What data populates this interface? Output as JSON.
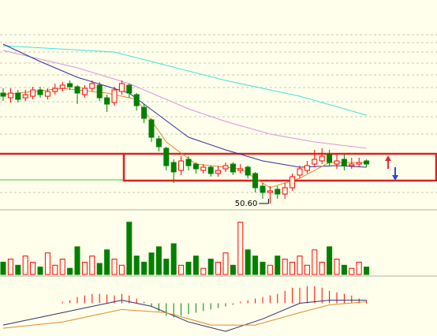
{
  "chart_data": [
    {
      "type": "candlestick",
      "open": [
        57.6,
        57.3,
        57.6,
        57.3,
        57.4,
        57.8,
        57.4,
        57.7,
        57.9,
        58.2,
        58.0,
        57.5,
        57.9,
        58.1,
        57.3,
        57.0,
        57.7,
        58.1,
        57.5,
        56.7,
        55.9,
        54.7,
        54.1,
        53.2,
        52.7,
        53.4,
        53.1,
        52.7,
        52.9,
        52.5,
        52.8,
        53.1,
        52.7,
        52.9,
        52.5,
        51.7,
        51.3,
        51.5,
        51.2,
        51.6,
        52.4,
        52.7,
        53.1,
        53.3,
        53.7,
        53.1,
        53.4,
        53.0,
        53.1,
        53.3
      ],
      "high": [
        57.9,
        57.9,
        57.8,
        57.8,
        58.0,
        58.0,
        57.9,
        58.2,
        58.3,
        58.4,
        58.1,
        58.1,
        58.4,
        58.3,
        57.5,
        58.0,
        58.4,
        58.2,
        57.6,
        56.9,
        56.0,
        54.9,
        54.2,
        53.4,
        53.6,
        53.6,
        53.2,
        53.1,
        53.0,
        53.0,
        53.2,
        53.2,
        53.1,
        53.0,
        52.6,
        51.9,
        51.7,
        51.7,
        51.9,
        52.5,
        53.0,
        53.3,
        54.0,
        54.1,
        54.0,
        53.8,
        53.7,
        53.5,
        53.5,
        53.4
      ],
      "low": [
        57.1,
        57.0,
        57.0,
        57.1,
        57.2,
        57.3,
        57.2,
        57.5,
        57.7,
        57.8,
        56.9,
        57.3,
        57.7,
        57.1,
        56.4,
        56.8,
        57.5,
        57.3,
        56.5,
        55.7,
        54.5,
        53.9,
        52.7,
        51.9,
        52.4,
        52.7,
        52.5,
        52.5,
        52.3,
        52.3,
        52.6,
        52.4,
        52.5,
        52.2,
        51.3,
        50.9,
        50.6,
        50.9,
        50.9,
        51.4,
        52.2,
        52.5,
        52.9,
        53.1,
        53.0,
        52.8,
        52.7,
        52.8,
        52.9,
        52.9
      ],
      "close": [
        57.4,
        57.6,
        57.2,
        57.5,
        57.8,
        57.5,
        57.7,
        57.9,
        58.1,
        58.0,
        57.6,
        57.9,
        58.2,
        57.3,
        56.9,
        57.8,
        58.2,
        57.6,
        56.8,
        56.0,
        54.8,
        54.2,
        53.0,
        52.6,
        53.3,
        53.0,
        52.8,
        52.9,
        52.5,
        52.7,
        53.0,
        52.6,
        52.8,
        52.4,
        51.6,
        51.3,
        51.4,
        51.2,
        51.6,
        52.3,
        52.8,
        53.0,
        53.4,
        53.6,
        53.2,
        53.3,
        53.0,
        53.1,
        53.2,
        53.1
      ],
      "up_color": "#ff0000",
      "down_color": "#008000",
      "low_label": {
        "value": 50.6,
        "label": "50.60"
      },
      "series": [
        {
          "color": "#40e0e0",
          "x": [
            0,
            15,
            30,
            40,
            49
          ],
          "values": [
            60.6,
            60.2,
            58.4,
            57.4,
            56.2
          ]
        },
        {
          "color": "#e090e0",
          "x": [
            0,
            10,
            17,
            25,
            30,
            36,
            42,
            49
          ],
          "values": [
            60.3,
            59.2,
            58.2,
            56.6,
            55.8,
            55.0,
            54.5,
            54.1
          ]
        },
        {
          "color": "#3030a0",
          "x": [
            0,
            5,
            10,
            17,
            21,
            25,
            30,
            35,
            40,
            45,
            49
          ],
          "values": [
            60.7,
            59.6,
            58.6,
            57.6,
            56.2,
            54.8,
            54.0,
            53.3,
            52.9,
            53.0,
            52.9
          ]
        },
        {
          "color": "#e08a2c",
          "x": [
            0,
            8,
            14,
            18,
            22,
            26,
            32,
            36,
            40,
            44,
            49
          ],
          "values": [
            57.5,
            57.9,
            57.6,
            57.2,
            54.5,
            53.1,
            52.8,
            51.6,
            52.2,
            53.2,
            53.2
          ]
        }
      ],
      "ylim": [
        50.2,
        63.5
      ]
    },
    {
      "type": "bar",
      "values": [
        20,
        25,
        15,
        30,
        20,
        12,
        35,
        15,
        25,
        10,
        45,
        20,
        30,
        18,
        40,
        25,
        15,
        85,
        30,
        20,
        35,
        45,
        25,
        50,
        15,
        20,
        30,
        10,
        25,
        20,
        35,
        15,
        85,
        40,
        30,
        20,
        15,
        30,
        25,
        20,
        30,
        15,
        40,
        20,
        45,
        25,
        15,
        10,
        20,
        12
      ],
      "ylim": [
        0,
        100
      ]
    },
    {
      "type": "macd",
      "values": [
        0,
        0,
        0,
        0,
        0,
        0,
        0,
        0,
        0.05,
        0.1,
        0.2,
        0.25,
        0.3,
        0.3,
        0.28,
        0.25,
        0.3,
        0.25,
        0.15,
        0.05,
        -0.1,
        -0.25,
        -0.4,
        -0.45,
        -0.4,
        -0.35,
        -0.3,
        -0.25,
        -0.2,
        -0.15,
        -0.1,
        -0.05,
        0.05,
        0.1,
        0.15,
        0.2,
        0.25,
        0.3,
        0.4,
        0.5,
        0.5,
        0.55,
        0.55,
        0.5,
        0.4,
        0.35,
        0.3,
        0.25,
        0.15,
        0.1
      ],
      "series": [
        {
          "color": "#303070",
          "x": [
            0,
            8,
            16,
            20,
            25,
            30,
            35,
            40,
            44,
            49
          ],
          "values": [
            -0.7,
            -0.3,
            0.1,
            -0.1,
            -0.6,
            -0.9,
            -0.5,
            0.0,
            0.1,
            0.1
          ]
        },
        {
          "color": "#e08a2c",
          "x": [
            0,
            8,
            16,
            22,
            28,
            34,
            40,
            44,
            49
          ],
          "values": [
            -0.8,
            -0.6,
            -0.2,
            -0.3,
            -0.7,
            -0.7,
            -0.3,
            -0.05,
            0.05
          ]
        }
      ],
      "ylim": [
        -1,
        1
      ]
    }
  ]
}
